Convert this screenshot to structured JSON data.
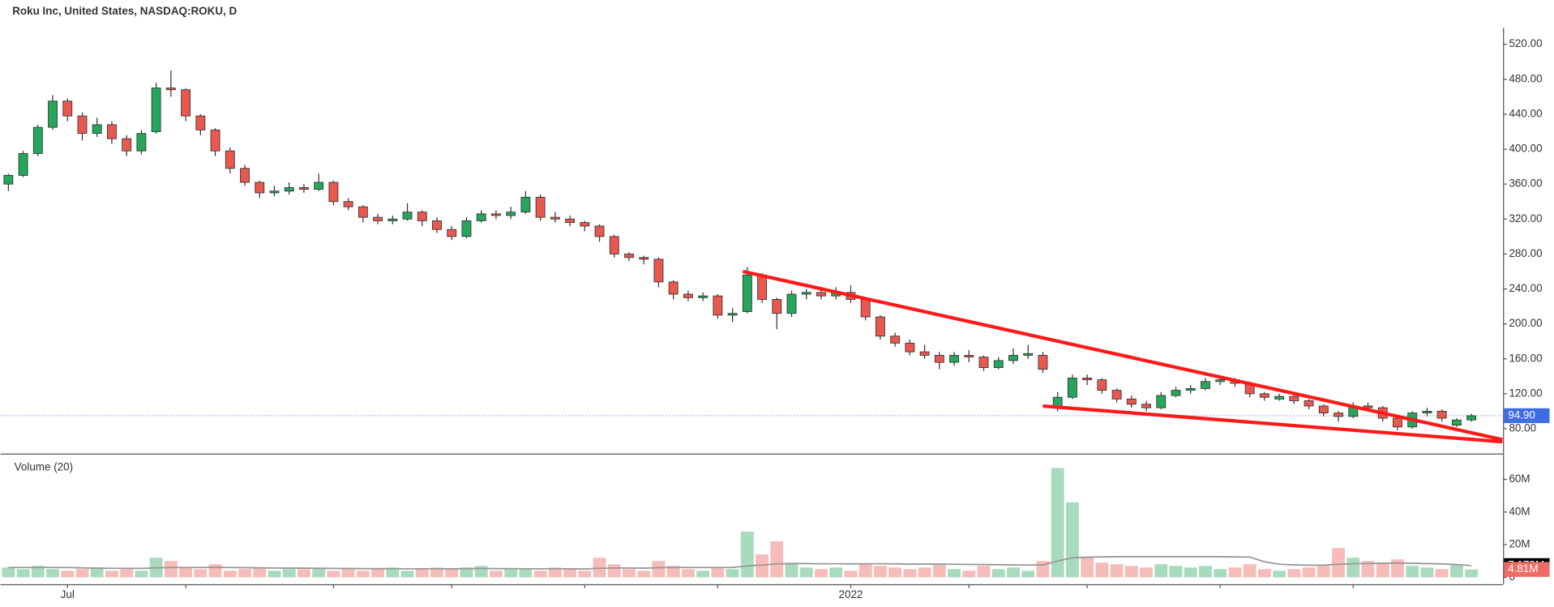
{
  "chart_data": {
    "type": "candlestick",
    "title": "Roku Inc, United States, NASDAQ:ROKU, D",
    "volume_title": "Volume (20)",
    "categories": [
      null,
      null,
      null,
      null,
      "Jul",
      null,
      null,
      null,
      null,
      null,
      null,
      null,
      null,
      null,
      null,
      null,
      null,
      null,
      null,
      null,
      null,
      null,
      null,
      null,
      null,
      null,
      null,
      null,
      null,
      null,
      null,
      null,
      null,
      null,
      null,
      null,
      null,
      null,
      null,
      null,
      null,
      null,
      null,
      null,
      null,
      null,
      null,
      null,
      null,
      null,
      null,
      null,
      null,
      null,
      null,
      null,
      null,
      "2022",
      null,
      null,
      null,
      null,
      null,
      null,
      null,
      null,
      null,
      null,
      null,
      null,
      null,
      null,
      null,
      null,
      null,
      null,
      null,
      null,
      null,
      null,
      null,
      null,
      null,
      null,
      null,
      null,
      null,
      null,
      null,
      null,
      null,
      null,
      null,
      null,
      null,
      null,
      null,
      null,
      null,
      null
    ],
    "xticks": [
      4,
      12,
      22,
      30,
      39,
      48,
      57,
      65,
      73,
      82,
      91
    ],
    "open": [
      360,
      370,
      395,
      425,
      455,
      438,
      418,
      428,
      412,
      398,
      420,
      470,
      468,
      438,
      422,
      398,
      378,
      362,
      350,
      352,
      356,
      354,
      362,
      340,
      334,
      322,
      318,
      320,
      328,
      318,
      308,
      300,
      318,
      326,
      324,
      328,
      345,
      322,
      320,
      316,
      312,
      300,
      280,
      276,
      274,
      248,
      234,
      230,
      232,
      210,
      214,
      256,
      228,
      212,
      234,
      236,
      232,
      236,
      228,
      208,
      186,
      178,
      168,
      164,
      156,
      164,
      162,
      150,
      158,
      164,
      164,
      104,
      116,
      138,
      136,
      124,
      114,
      108,
      104,
      118,
      124,
      126,
      134,
      136,
      132,
      120,
      114,
      117,
      112,
      106,
      98,
      94,
      106,
      104,
      92,
      82,
      98,
      100,
      84,
      90
    ],
    "high": [
      372,
      398,
      428,
      462,
      458,
      442,
      436,
      432,
      416,
      422,
      476,
      490,
      470,
      440,
      424,
      402,
      382,
      364,
      358,
      362,
      360,
      372,
      364,
      344,
      336,
      326,
      324,
      338,
      330,
      322,
      312,
      322,
      330,
      330,
      334,
      352,
      348,
      328,
      324,
      318,
      314,
      302,
      282,
      278,
      276,
      250,
      238,
      236,
      234,
      218,
      265,
      258,
      230,
      238,
      240,
      240,
      242,
      244,
      230,
      210,
      190,
      182,
      176,
      168,
      168,
      170,
      164,
      162,
      172,
      176,
      168,
      122,
      142,
      142,
      138,
      126,
      118,
      112,
      122,
      128,
      130,
      138,
      140,
      138,
      134,
      122,
      120,
      120,
      114,
      108,
      100,
      110,
      110,
      106,
      94,
      100,
      104,
      102,
      92,
      97
    ],
    "low": [
      352,
      368,
      392,
      422,
      432,
      410,
      414,
      406,
      392,
      394,
      418,
      460,
      432,
      416,
      392,
      372,
      358,
      344,
      346,
      348,
      350,
      352,
      336,
      330,
      316,
      314,
      314,
      318,
      312,
      304,
      296,
      298,
      316,
      320,
      320,
      326,
      318,
      316,
      312,
      306,
      294,
      276,
      272,
      268,
      242,
      228,
      226,
      226,
      206,
      202,
      212,
      224,
      194,
      208,
      228,
      228,
      228,
      224,
      204,
      182,
      174,
      164,
      160,
      148,
      152,
      156,
      146,
      148,
      154,
      160,
      144,
      100,
      114,
      130,
      120,
      110,
      104,
      100,
      102,
      116,
      120,
      124,
      130,
      128,
      116,
      112,
      112,
      108,
      102,
      94,
      88,
      92,
      100,
      88,
      78,
      80,
      94,
      88,
      82,
      88
    ],
    "close": [
      370,
      395,
      425,
      455,
      438,
      418,
      428,
      412,
      398,
      418,
      470,
      468,
      438,
      422,
      398,
      378,
      362,
      350,
      352,
      356,
      354,
      362,
      340,
      334,
      322,
      318,
      320,
      328,
      318,
      308,
      300,
      318,
      326,
      324,
      328,
      345,
      322,
      320,
      316,
      312,
      300,
      280,
      276,
      274,
      248,
      234,
      230,
      232,
      210,
      212,
      256,
      228,
      212,
      234,
      236,
      232,
      236,
      228,
      208,
      186,
      178,
      168,
      164,
      156,
      164,
      162,
      150,
      158,
      164,
      166,
      148,
      116,
      138,
      136,
      124,
      114,
      108,
      104,
      118,
      124,
      126,
      134,
      136,
      132,
      120,
      116,
      117,
      112,
      106,
      98,
      94,
      106,
      104,
      92,
      82,
      98,
      100,
      92,
      90,
      94.9
    ],
    "volume": [
      6,
      5,
      7,
      5,
      4,
      5,
      6,
      4,
      5,
      4,
      12,
      10,
      6,
      5,
      8,
      4,
      5,
      6,
      4,
      5,
      5,
      6,
      4,
      5,
      4,
      5,
      6,
      4,
      5,
      6,
      5,
      6,
      7,
      4,
      5,
      5,
      4,
      6,
      5,
      4,
      12,
      8,
      5,
      4,
      10,
      7,
      5,
      4,
      6,
      5,
      28,
      14,
      22,
      9,
      6,
      5,
      6,
      4,
      8,
      7,
      6,
      5,
      6,
      8,
      5,
      4,
      7,
      5,
      6,
      4,
      10,
      67,
      46,
      12,
      9,
      8,
      7,
      6,
      8,
      7,
      6,
      7,
      5,
      6,
      8,
      5,
      4,
      5,
      6,
      7,
      18,
      12,
      10,
      9,
      11,
      7,
      6,
      5,
      8,
      4.81
    ],
    "volume_ma": [
      6,
      6,
      6,
      6,
      6,
      5.8,
      5.6,
      5.5,
      5.5,
      5.4,
      5.8,
      6,
      6,
      6,
      6.1,
      6,
      5.9,
      5.8,
      5.7,
      5.6,
      5.6,
      5.5,
      5.4,
      5.4,
      5.3,
      5.3,
      5.3,
      5.2,
      5.2,
      5.2,
      5.2,
      5.3,
      5.4,
      5.3,
      5.3,
      5.2,
      5.2,
      5.2,
      5.2,
      5.1,
      5.5,
      5.7,
      5.7,
      5.6,
      5.9,
      6,
      6,
      6,
      6,
      6,
      7,
      7.5,
      8.2,
      8.4,
      8.4,
      8.3,
      8.3,
      8.2,
      8.3,
      8.3,
      8.2,
      8.1,
      8.1,
      8.1,
      8,
      7.9,
      7.8,
      7.7,
      7.6,
      7.5,
      7.6,
      10,
      12,
      12.3,
      12.5,
      12.6,
      12.6,
      12.6,
      12.6,
      12.6,
      12.6,
      12.6,
      12.6,
      12.5,
      12.4,
      9.5,
      8,
      7.6,
      7.4,
      7.4,
      8,
      8.3,
      8.5,
      8.6,
      8.7,
      8.6,
      8.4,
      8.2,
      7.8,
      7.178
    ],
    "ylim": [
      51.6,
      539
    ],
    "yticks": [
      {
        "value": 80,
        "label": "80.00"
      },
      {
        "value": 120,
        "label": "120.00"
      },
      {
        "value": 160,
        "label": "160.00"
      },
      {
        "value": 200,
        "label": "200.00"
      },
      {
        "value": 240,
        "label": "240.00"
      },
      {
        "value": 280,
        "label": "280.00"
      },
      {
        "value": 320,
        "label": "320.00"
      },
      {
        "value": 360,
        "label": "360.00"
      },
      {
        "value": 400,
        "label": "400.00"
      },
      {
        "value": 440,
        "label": "440.00"
      },
      {
        "value": 480,
        "label": "480.00"
      },
      {
        "value": 520,
        "label": "520.00"
      }
    ],
    "volume_ylim": [
      0,
      71
    ],
    "volume_yticks": [
      0,
      {
        "value": 20,
        "label": "20M"
      },
      {
        "value": 40,
        "label": "40M"
      },
      {
        "value": 60,
        "label": "60M"
      }
    ],
    "last_price": {
      "value": 94.9,
      "label": "94.90"
    },
    "last_volume_ma": {
      "value": 7.178,
      "label": "7.178M"
    },
    "last_volume": {
      "value": 4.81,
      "label": "4.81M"
    },
    "up_color": "#26a65b",
    "down_color": "#e8584f",
    "trendline_color": "#ff1a1a",
    "trendlines": [
      {
        "x": [
          49.7,
          101.1
        ],
        "y": [
          260,
          67.5
        ]
      },
      {
        "x": [
          70,
          101.1
        ],
        "y": [
          106,
          65
        ]
      }
    ]
  }
}
